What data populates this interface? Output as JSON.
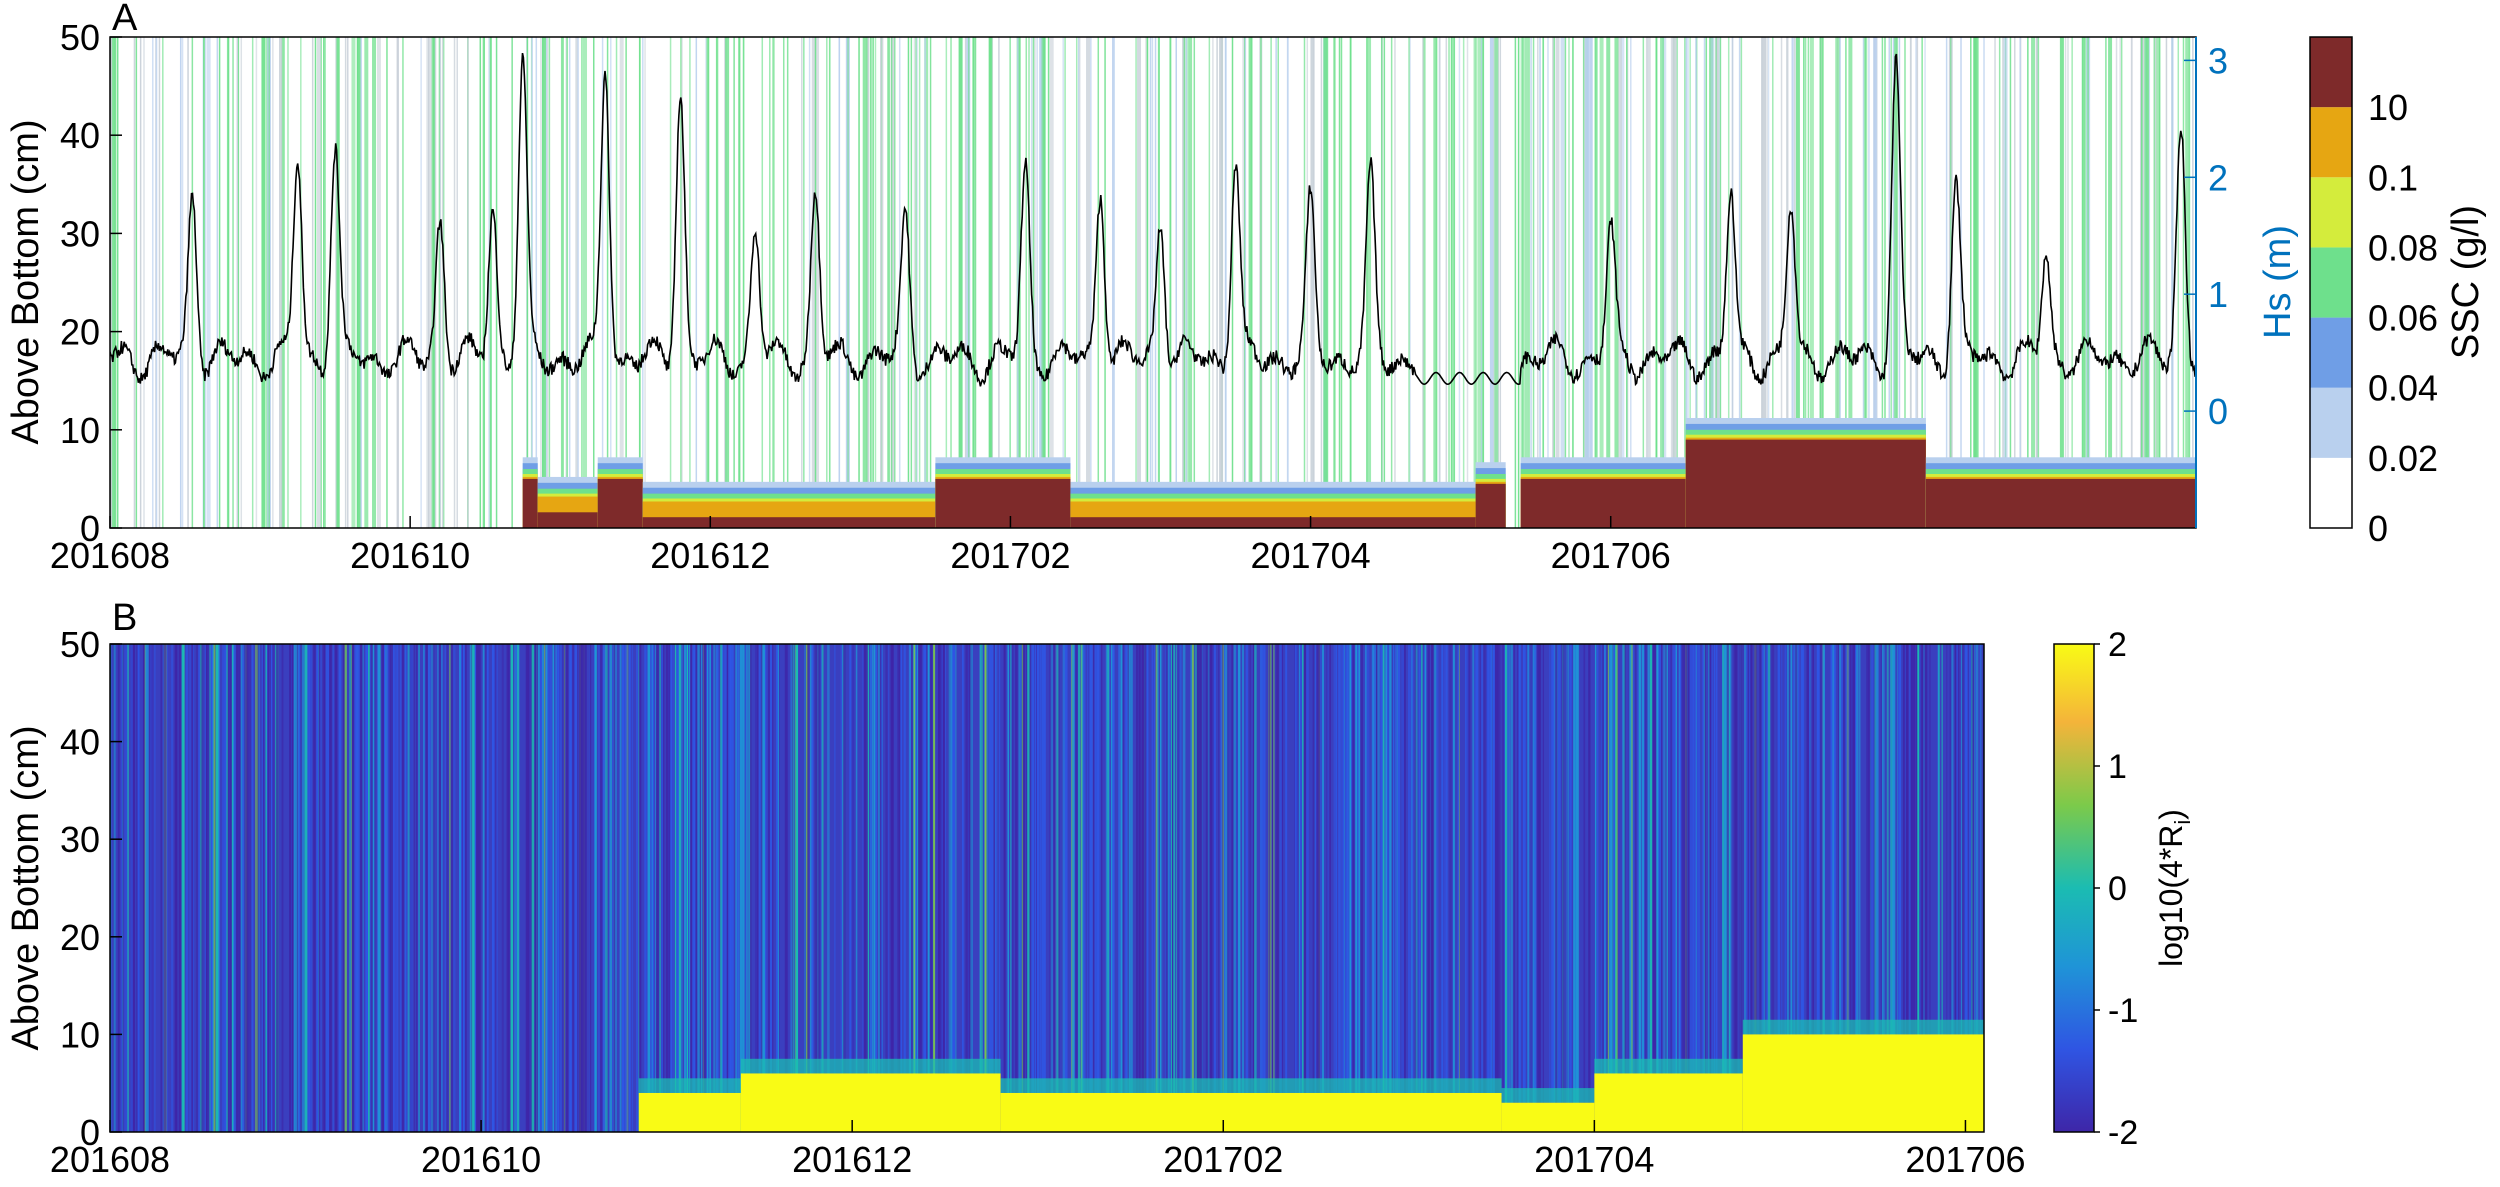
{
  "chart_data": [
    {
      "panel": "A",
      "type": "heatmap",
      "title": "",
      "ylabel": "Above Bottom (cm)",
      "xlabel": "",
      "x_tick_labels": [
        "201608",
        "201610",
        "201612",
        "201702",
        "201704",
        "201706"
      ],
      "ylim": [
        0,
        50
      ],
      "y_ticks": [
        0,
        10,
        20,
        30,
        40,
        50
      ],
      "secondary_axis": {
        "label": "Hs (m)",
        "color": "#0072BD",
        "ticks": [
          0,
          1,
          2,
          3
        ],
        "range": [
          -1.0,
          3.2
        ]
      },
      "colorbar": {
        "label": "SSC (g/l)",
        "tick_labels": [
          "0",
          "0.02",
          "0.04",
          "0.06",
          "0.08",
          "0.1",
          "10"
        ],
        "colors": [
          "#ffffff",
          "#b9d0ee",
          "#6f9ee6",
          "#6ee08c",
          "#d4ec3c",
          "#e6a612",
          "#7e2a2a"
        ]
      },
      "x_range_months": [
        0,
        13.9
      ],
      "hs_line_color": "#000000",
      "ssc_layers": [
        {
          "start": 0.0,
          "end": 2.75,
          "height": 0,
          "color": "#ffffff"
        },
        {
          "start": 2.75,
          "end": 2.85,
          "height": 5,
          "color": "#7e2a2a"
        },
        {
          "start": 2.85,
          "end": 3.25,
          "height": 3,
          "color": "#d4ec3c"
        },
        {
          "start": 3.25,
          "end": 3.55,
          "height": 5,
          "color": "#7e2a2a"
        },
        {
          "start": 3.55,
          "end": 5.5,
          "height": 2.5,
          "color": "#d4ec3c"
        },
        {
          "start": 5.5,
          "end": 6.4,
          "height": 5,
          "color": "#7e2a2a"
        },
        {
          "start": 6.4,
          "end": 9.1,
          "height": 2.5,
          "color": "#d4ec3c"
        },
        {
          "start": 9.1,
          "end": 9.3,
          "height": 4.5,
          "color": "#7e2a2a"
        },
        {
          "start": 9.4,
          "end": 10.5,
          "height": 5,
          "color": "#7e2a2a"
        },
        {
          "start": 10.5,
          "end": 12.1,
          "height": 9,
          "color": "#7e2a2a"
        },
        {
          "start": 12.1,
          "end": 13.9,
          "height": 5,
          "color": "#7e2a2a"
        }
      ],
      "hs_peaks": [
        {
          "x": 0.55,
          "hs": 1.9
        },
        {
          "x": 1.25,
          "hs": 2.2
        },
        {
          "x": 1.5,
          "hs": 2.3
        },
        {
          "x": 2.2,
          "hs": 1.7
        },
        {
          "x": 2.55,
          "hs": 1.8
        },
        {
          "x": 2.75,
          "hs": 3.0
        },
        {
          "x": 3.3,
          "hs": 3.0
        },
        {
          "x": 3.8,
          "hs": 2.8
        },
        {
          "x": 4.3,
          "hs": 1.6
        },
        {
          "x": 4.7,
          "hs": 1.9
        },
        {
          "x": 5.3,
          "hs": 1.7
        },
        {
          "x": 6.1,
          "hs": 2.1
        },
        {
          "x": 6.6,
          "hs": 2.0
        },
        {
          "x": 7.0,
          "hs": 1.7
        },
        {
          "x": 7.5,
          "hs": 2.2
        },
        {
          "x": 8.0,
          "hs": 1.8
        },
        {
          "x": 8.4,
          "hs": 2.0
        },
        {
          "x": 9.2,
          "hs": 1.5
        },
        {
          "x": 10.0,
          "hs": 1.6
        },
        {
          "x": 10.8,
          "hs": 1.9
        },
        {
          "x": 11.2,
          "hs": 1.8
        },
        {
          "x": 11.9,
          "hs": 3.0
        },
        {
          "x": 12.3,
          "hs": 2.0
        },
        {
          "x": 12.9,
          "hs": 1.4
        },
        {
          "x": 13.8,
          "hs": 2.5
        }
      ]
    },
    {
      "panel": "B",
      "type": "heatmap",
      "title": "",
      "ylabel": "Above Bottom (cm)",
      "xlabel": "",
      "x_tick_labels": [
        "201608",
        "201610",
        "201612",
        "201702",
        "201704",
        "201706"
      ],
      "ylim": [
        0,
        50
      ],
      "y_ticks": [
        0,
        10,
        20,
        30,
        40,
        50
      ],
      "x_range_months": [
        0,
        10.1
      ],
      "colorbar": {
        "label_main": "log10(4*R",
        "label_sub": "i",
        "label_close": ")",
        "range": [
          -2,
          2
        ],
        "tick_labels": [
          "-2",
          "-1",
          "0",
          "1",
          "2"
        ],
        "colors": [
          "#3e26a8",
          "#2f55e3",
          "#1f94d7",
          "#1bbcb2",
          "#7cca4a",
          "#f4b43a",
          "#f9fb15"
        ]
      },
      "bottom_layer": [
        {
          "start": 0.0,
          "end": 2.85,
          "height": 0
        },
        {
          "start": 2.85,
          "end": 3.4,
          "height": 4
        },
        {
          "start": 3.4,
          "end": 4.8,
          "height": 6
        },
        {
          "start": 4.8,
          "end": 7.5,
          "height": 4
        },
        {
          "start": 7.5,
          "end": 8.0,
          "height": 3
        },
        {
          "start": 8.0,
          "end": 8.8,
          "height": 6
        },
        {
          "start": 8.8,
          "end": 10.1,
          "height": 10
        }
      ]
    }
  ],
  "panel_labels": [
    "A",
    "B"
  ]
}
